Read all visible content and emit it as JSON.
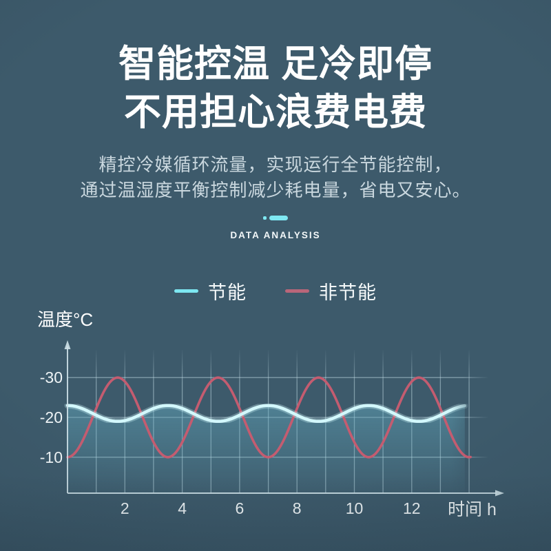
{
  "page": {
    "background_color": "#3d5a6b",
    "accent_cyan": "#7de7f1",
    "text_color": "#ffffff"
  },
  "header": {
    "title_line1": "智能控温 足冷即停",
    "title_line2": "不用担心浪费电费",
    "subtitle_line1": "精控冷媒循环流量，实现运行全节能控制，",
    "subtitle_line2": "通过温湿度平衡控制减少耗电量，省电又安心。"
  },
  "badge": {
    "label": "DATA ANALYSIS",
    "deco_color": "#7fe8f2"
  },
  "chart_data": {
    "type": "line",
    "ylabel": "温度°C",
    "xlabel": "时间 h",
    "x_ticks": [
      2,
      4,
      6,
      8,
      10,
      12
    ],
    "y_ticks": [
      -30,
      -20,
      -10
    ],
    "x_range_h": [
      0,
      14
    ],
    "y_axis_note": "temperature axis inverted: -30 at top, -10 at bottom (colder is higher)",
    "grid": true,
    "legend_position": "top-center",
    "grid_color": "#c3dde6",
    "axis_color": "#cfe2e9",
    "tick_text_color": "#eef4f6",
    "series": [
      {
        "name": "节能",
        "color": "#d3f8fc",
        "legend_color": "#7de7f1",
        "mean_c": -21,
        "amplitude_c": 2,
        "period_h": 3.5,
        "coldest_at_h": 0,
        "t_start_h": 0,
        "t_end_h": 13.85,
        "area_fill": true,
        "area_color": "#65afc4",
        "description": "small oscillation between -23°C and -19°C"
      },
      {
        "name": "非节能",
        "color": "#c45c70",
        "legend_color": "#b96679",
        "mean_c": -20,
        "amplitude_c": 10,
        "period_h": 3.5,
        "coldest_at_h": 1.75,
        "t_start_h": 0,
        "t_end_h": 14.05,
        "area_fill": false,
        "description": "large oscillation between -30°C and -10°C"
      }
    ]
  }
}
